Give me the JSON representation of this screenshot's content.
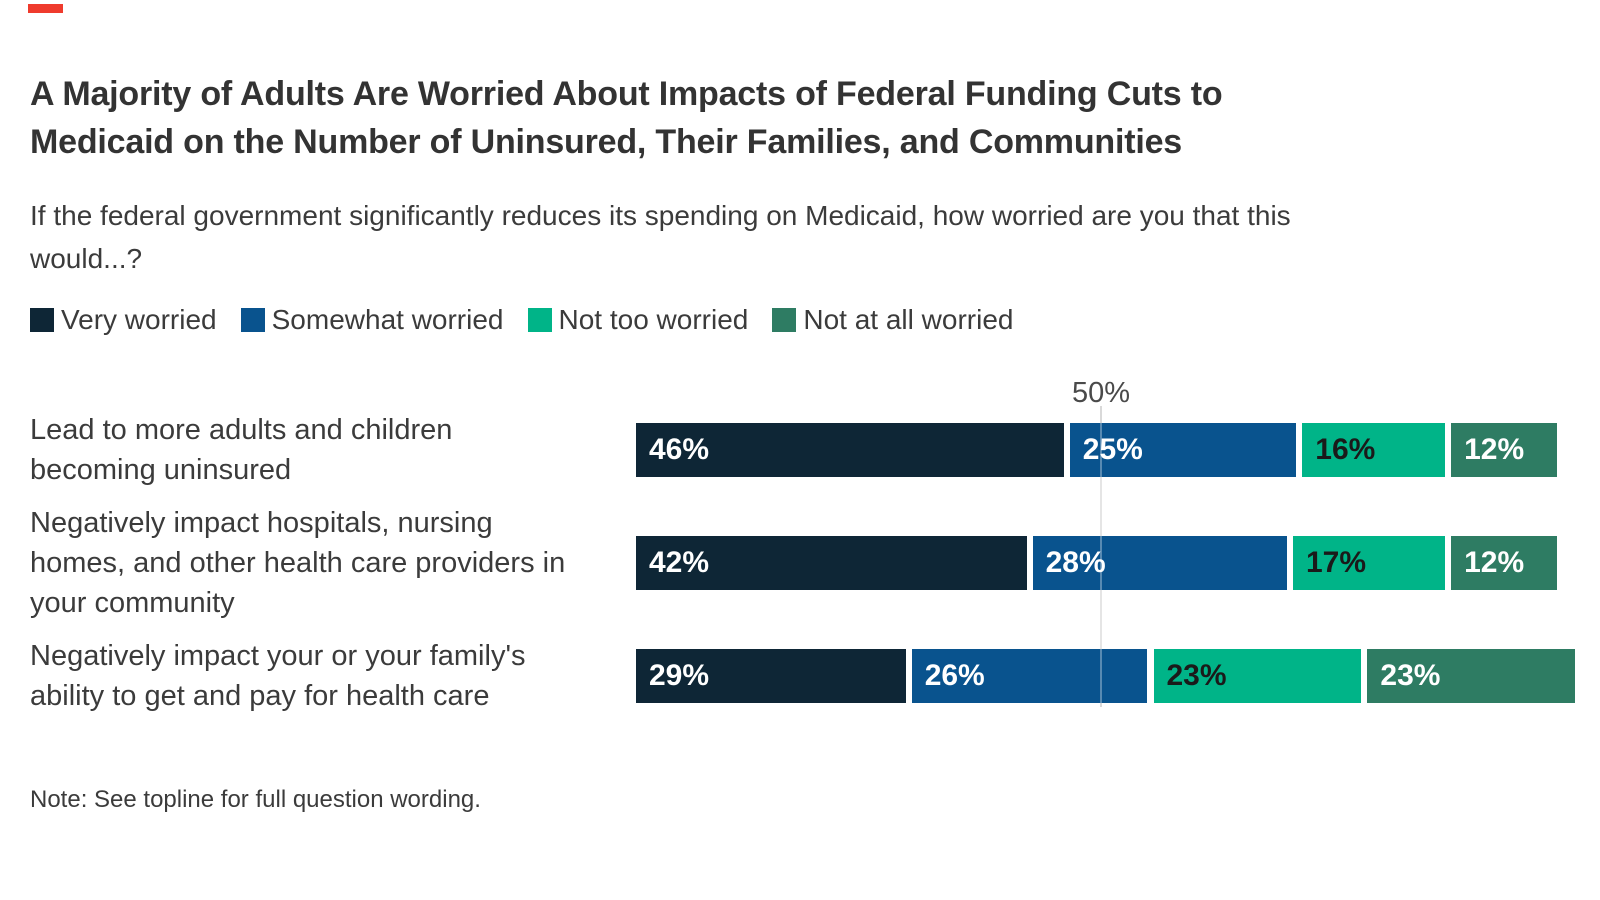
{
  "brand": {
    "top_dash_color": "#ef3b2d"
  },
  "title": {
    "lines": [
      "A Majority of Adults Are Worried About Impacts of Federal Funding Cuts to",
      "Medicaid on the Number of Uninsured, Their Families, and Communities"
    ]
  },
  "subtitle": {
    "lines": [
      "If the federal government significantly reduces its spending on Medicaid, how worried are you that this",
      "would...?"
    ]
  },
  "note": "Note: See topline for full question wording.",
  "chart_data": {
    "type": "bar",
    "variant": "horizontal-stacked",
    "unit": "%",
    "xlim": [
      0,
      100
    ],
    "grid": "single vertical reference line",
    "gridline_value": 50,
    "gridline_label": "50%",
    "legend_position": "top",
    "categories": [
      {
        "lines": [
          "Lead to more adults and children",
          "becoming uninsured"
        ]
      },
      {
        "lines": [
          "Negatively impact hospitals, nursing",
          "homes, and other health care providers in",
          "your community"
        ]
      },
      {
        "lines": [
          "Negatively impact your or your family's",
          "ability to get and pay for health care"
        ]
      }
    ],
    "series": [
      {
        "name": "Very worried",
        "color": "#0e2636",
        "label_color": "#ffffff",
        "values": [
          46,
          42,
          29
        ]
      },
      {
        "name": "Somewhat worried",
        "color": "#09538e",
        "label_color": "#ffffff",
        "values": [
          25,
          28,
          26
        ]
      },
      {
        "name": "Not too worried",
        "color": "#00b488",
        "label_color": "#1a1a1a",
        "values": [
          16,
          17,
          23
        ]
      },
      {
        "name": "Not at all worried",
        "color": "#2e7c63",
        "label_color": "#ffffff",
        "values": [
          12,
          12,
          23
        ]
      }
    ]
  }
}
